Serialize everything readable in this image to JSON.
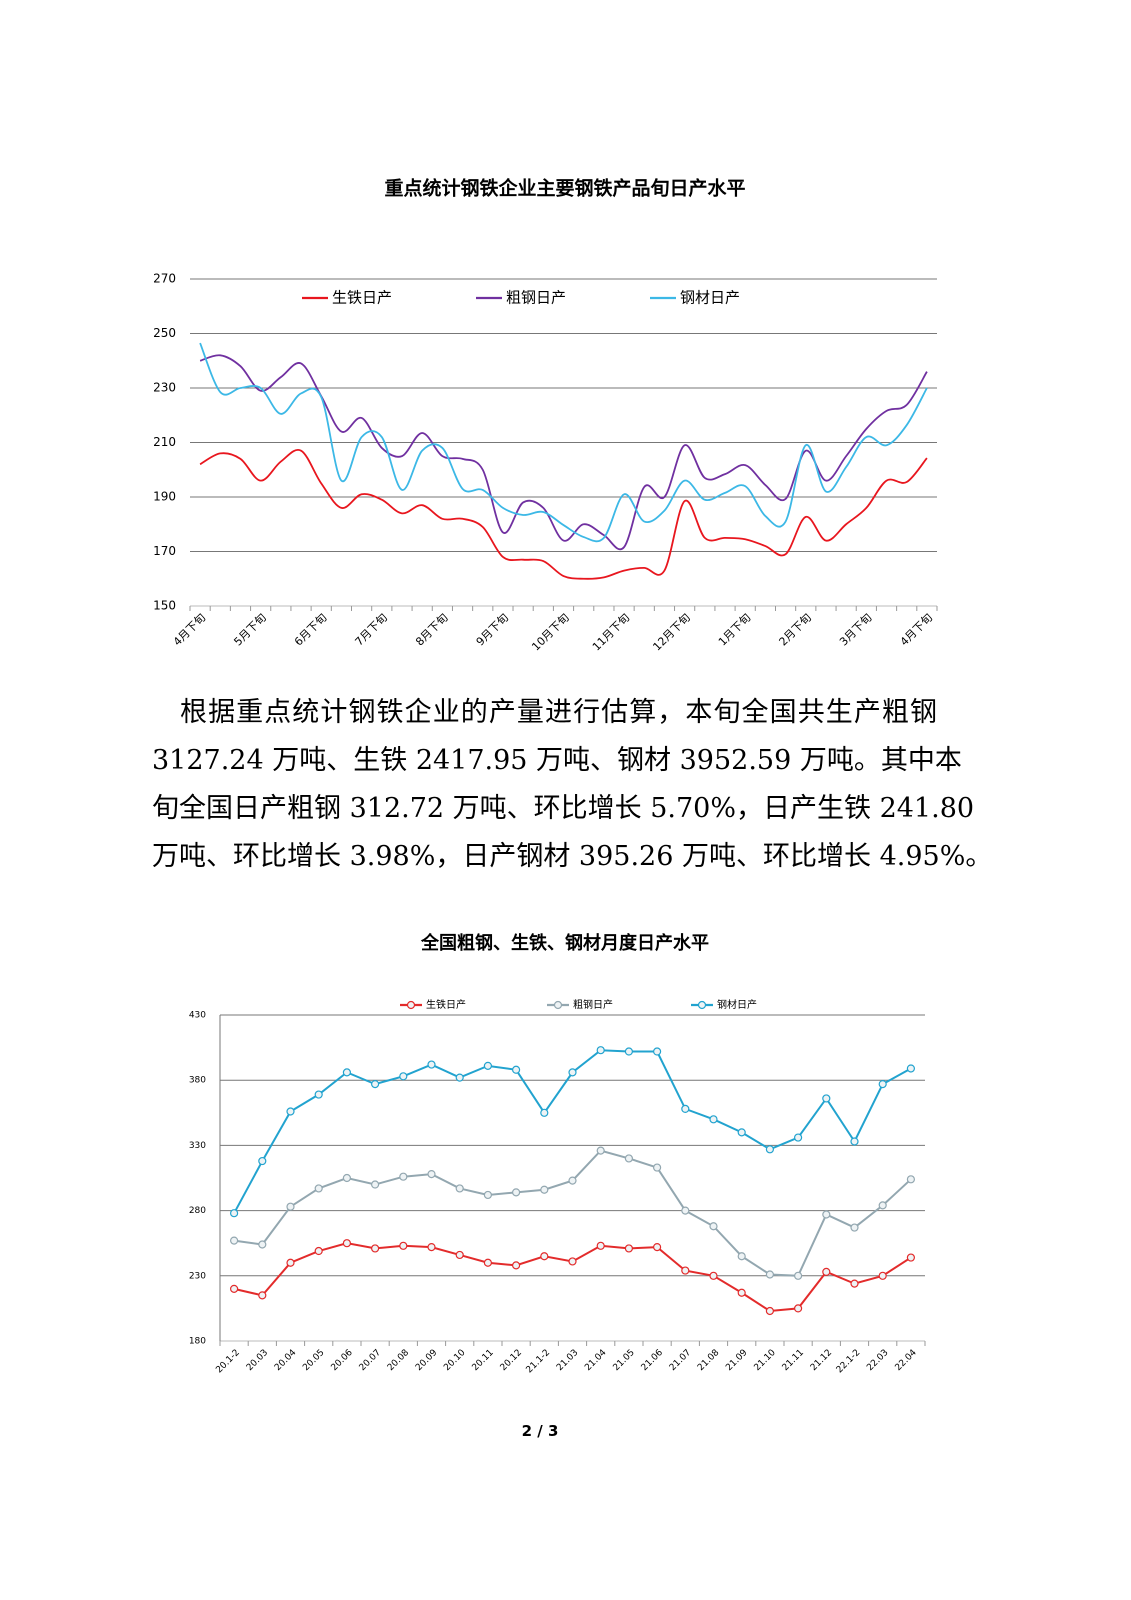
{
  "chart_data": [
    {
      "type": "line",
      "title": "重点统计钢铁企业主要钢铁产品旬日产水平",
      "smooth": true,
      "markers": false,
      "grid": true,
      "legend": "top",
      "categories": [
        "4月下旬",
        null,
        null,
        "5月下旬",
        null,
        null,
        "6月下旬",
        null,
        null,
        "7月下旬",
        null,
        null,
        "8月下旬",
        null,
        null,
        "9月下旬",
        null,
        null,
        "10月下旬",
        null,
        null,
        "11月下旬",
        null,
        null,
        "12月下旬",
        null,
        null,
        "1月下旬",
        null,
        null,
        "2月下旬",
        null,
        null,
        "3月下旬",
        null,
        null,
        "4月下旬"
      ],
      "series": [
        {
          "name": "生铁日产",
          "color": "#e8161e",
          "values": [
            202,
            206,
            204,
            196,
            203,
            207,
            195,
            186,
            191,
            189,
            184,
            187,
            182,
            182,
            179,
            168,
            167,
            166.5,
            161,
            160,
            160.5,
            163,
            164,
            163,
            188.5,
            175,
            175,
            174.5,
            172,
            169,
            182.7,
            174,
            180,
            186,
            196,
            195.5,
            204.3
          ]
        },
        {
          "name": "粗钢日产",
          "color": "#7030a0",
          "values": [
            240,
            242,
            238,
            229,
            234,
            239,
            227,
            214,
            219,
            208,
            205,
            213.5,
            205,
            204,
            200,
            177,
            188,
            186,
            174,
            180,
            176,
            171.6,
            193.7,
            190,
            209,
            197,
            198.4,
            201.7,
            194.4,
            189.3,
            207,
            196,
            205,
            215,
            221.6,
            223.8,
            236
          ]
        },
        {
          "name": "钢材日产",
          "color": "#3cb8e6",
          "values": [
            246.5,
            228.5,
            230,
            230,
            220.5,
            228,
            226.7,
            196,
            212,
            212,
            192.6,
            207,
            208,
            193,
            192.6,
            186,
            183.4,
            184.5,
            179.7,
            175.3,
            175,
            191,
            181,
            185,
            196,
            189,
            191.5,
            194,
            183,
            181,
            209,
            192,
            201,
            212,
            209,
            216.4,
            230
          ]
        }
      ],
      "ylim": [
        150,
        270
      ],
      "yticks": [
        150,
        170,
        190,
        210,
        230,
        250,
        270
      ]
    },
    {
      "type": "line",
      "title": "全国粗钢、生铁、钢材月度日产水平",
      "smooth": false,
      "markers": true,
      "grid": true,
      "legend": "top",
      "categories": [
        "20.1-2",
        "20.03",
        "20.04",
        "20.05",
        "20.06",
        "20.07",
        "20.08",
        "20.09",
        "20.10",
        "20.11",
        "20.12",
        "21.1-2",
        "21.03",
        "21.04",
        "21.05",
        "21.06",
        "21.07",
        "21.08",
        "21.09",
        "21.10",
        "21.11",
        "21.12",
        "22.1-2",
        "22.03",
        "22.04"
      ],
      "series": [
        {
          "name": "生铁日产",
          "color": "#e32b2b",
          "values": [
            220,
            215,
            240,
            249,
            255,
            251,
            253,
            252,
            246,
            240,
            238,
            245,
            241,
            253,
            251,
            252,
            234,
            230,
            217,
            203,
            205,
            233,
            224,
            230,
            244
          ]
        },
        {
          "name": "粗钢日产",
          "color": "#93a7b0",
          "values": [
            257,
            254,
            283,
            297,
            305,
            300,
            306,
            308,
            297,
            292,
            294,
            296,
            303,
            326,
            320,
            313,
            280,
            268,
            245,
            231,
            230,
            277,
            267,
            284,
            304
          ]
        },
        {
          "name": "钢材日产",
          "color": "#22a3cf",
          "values": [
            278,
            318,
            356,
            369,
            386,
            377,
            383,
            392,
            382,
            391,
            388,
            355,
            386,
            403,
            402,
            402,
            358,
            350,
            340,
            327,
            336,
            366,
            333,
            377,
            389
          ]
        }
      ],
      "ylim": [
        180,
        430
      ],
      "yticks": [
        180,
        230,
        280,
        330,
        380,
        430
      ]
    }
  ],
  "paragraph_lines": [
    "根据重点统计钢铁企业的产量进行估算，本旬全国共生产粗钢",
    "3127.24 万吨、生铁 2417.95 万吨、钢材 3952.59 万吨。其中本",
    "旬全国日产粗钢 312.72 万吨、环比增长 5.70%，日产生铁 241.80",
    "万吨、环比增长 3.98%，日产钢材 395.26 万吨、环比增长 4.95%。"
  ],
  "page_number": "2 / 3"
}
